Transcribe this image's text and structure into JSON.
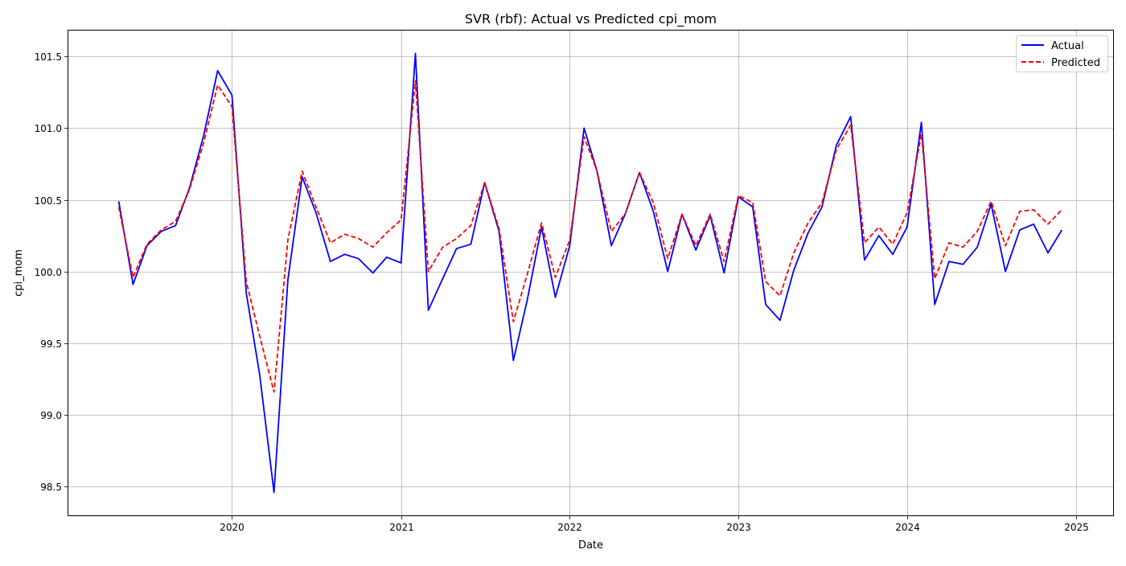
{
  "chart_data": {
    "type": "line",
    "title": "SVR (rbf): Actual vs Predicted cpi_mom",
    "xlabel": "Date",
    "ylabel": "cpi_mom",
    "xlim": [
      "2019-01-12",
      "2025-03-22"
    ],
    "ylim": [
      98.3,
      101.68
    ],
    "x_ticks": [
      "2020",
      "2021",
      "2022",
      "2023",
      "2024",
      "2025"
    ],
    "x_tick_dates": [
      "2020-01-01",
      "2021-01-01",
      "2022-01-01",
      "2023-01-01",
      "2024-01-01",
      "2025-01-01"
    ],
    "y_ticks": [
      "98.5",
      "99.0",
      "99.5",
      "100.0",
      "100.5",
      "101.0",
      "101.5"
    ],
    "y_tick_values": [
      98.5,
      99.0,
      99.5,
      100.0,
      100.5,
      101.0,
      101.5
    ],
    "grid": true,
    "legend_position": "top-right",
    "x": [
      "2019-05-01",
      "2019-06-01",
      "2019-07-01",
      "2019-08-01",
      "2019-09-01",
      "2019-10-01",
      "2019-11-01",
      "2019-12-01",
      "2020-01-01",
      "2020-02-01",
      "2020-03-01",
      "2020-04-01",
      "2020-05-01",
      "2020-06-01",
      "2020-07-01",
      "2020-08-01",
      "2020-09-01",
      "2020-10-01",
      "2020-11-01",
      "2020-12-01",
      "2021-01-01",
      "2021-02-01",
      "2021-03-01",
      "2021-04-01",
      "2021-05-01",
      "2021-06-01",
      "2021-07-01",
      "2021-08-01",
      "2021-09-01",
      "2021-10-01",
      "2021-11-01",
      "2021-12-01",
      "2022-01-01",
      "2022-02-01",
      "2022-03-01",
      "2022-04-01",
      "2022-05-01",
      "2022-06-01",
      "2022-07-01",
      "2022-08-01",
      "2022-09-01",
      "2022-10-01",
      "2022-11-01",
      "2022-12-01",
      "2023-01-01",
      "2023-02-01",
      "2023-03-01",
      "2023-04-01",
      "2023-05-01",
      "2023-06-01",
      "2023-07-01",
      "2023-08-01",
      "2023-09-01",
      "2023-10-01",
      "2023-11-01",
      "2023-12-01",
      "2024-01-01",
      "2024-02-01",
      "2024-03-01",
      "2024-04-01",
      "2024-05-01",
      "2024-06-01",
      "2024-07-01",
      "2024-08-01",
      "2024-09-01",
      "2024-10-01",
      "2024-11-01",
      "2024-12-01"
    ],
    "series": [
      {
        "name": "Actual",
        "color": "#0000ff",
        "style": "solid",
        "values": [
          100.49,
          99.91,
          100.18,
          100.28,
          100.32,
          100.58,
          100.95,
          101.4,
          101.23,
          99.85,
          99.28,
          98.46,
          99.94,
          100.66,
          100.41,
          100.07,
          100.12,
          100.09,
          99.99,
          100.1,
          100.06,
          101.52,
          99.73,
          99.95,
          100.16,
          100.19,
          100.62,
          100.28,
          99.38,
          99.8,
          100.31,
          99.82,
          100.18,
          101.0,
          100.7,
          100.18,
          100.4,
          100.69,
          100.42,
          100.0,
          100.4,
          100.15,
          100.39,
          99.99,
          100.52,
          100.45,
          99.77,
          99.66,
          100.01,
          100.27,
          100.45,
          100.88,
          101.08,
          100.08,
          100.25,
          100.12,
          100.31,
          101.04,
          99.77,
          100.07,
          100.05,
          100.17,
          100.47,
          100.0,
          100.29,
          100.33,
          100.13,
          100.29
        ]
      },
      {
        "name": "Predicted",
        "color": "#ff0000",
        "style": "dashed",
        "values": [
          100.45,
          99.96,
          100.19,
          100.29,
          100.35,
          100.57,
          100.9,
          101.3,
          101.15,
          99.93,
          99.55,
          99.16,
          100.22,
          100.7,
          100.45,
          100.2,
          100.26,
          100.23,
          100.17,
          100.27,
          100.36,
          101.33,
          100.0,
          100.17,
          100.23,
          100.32,
          100.62,
          100.3,
          99.65,
          99.98,
          100.34,
          99.96,
          100.22,
          100.94,
          100.7,
          100.28,
          100.4,
          100.69,
          100.48,
          100.09,
          100.4,
          100.18,
          100.4,
          100.07,
          100.53,
          100.48,
          99.93,
          99.83,
          100.13,
          100.34,
          100.48,
          100.85,
          101.02,
          100.2,
          100.31,
          100.19,
          100.41,
          100.96,
          99.95,
          100.2,
          100.17,
          100.28,
          100.49,
          100.18,
          100.42,
          100.43,
          100.33,
          100.43
        ]
      }
    ]
  }
}
